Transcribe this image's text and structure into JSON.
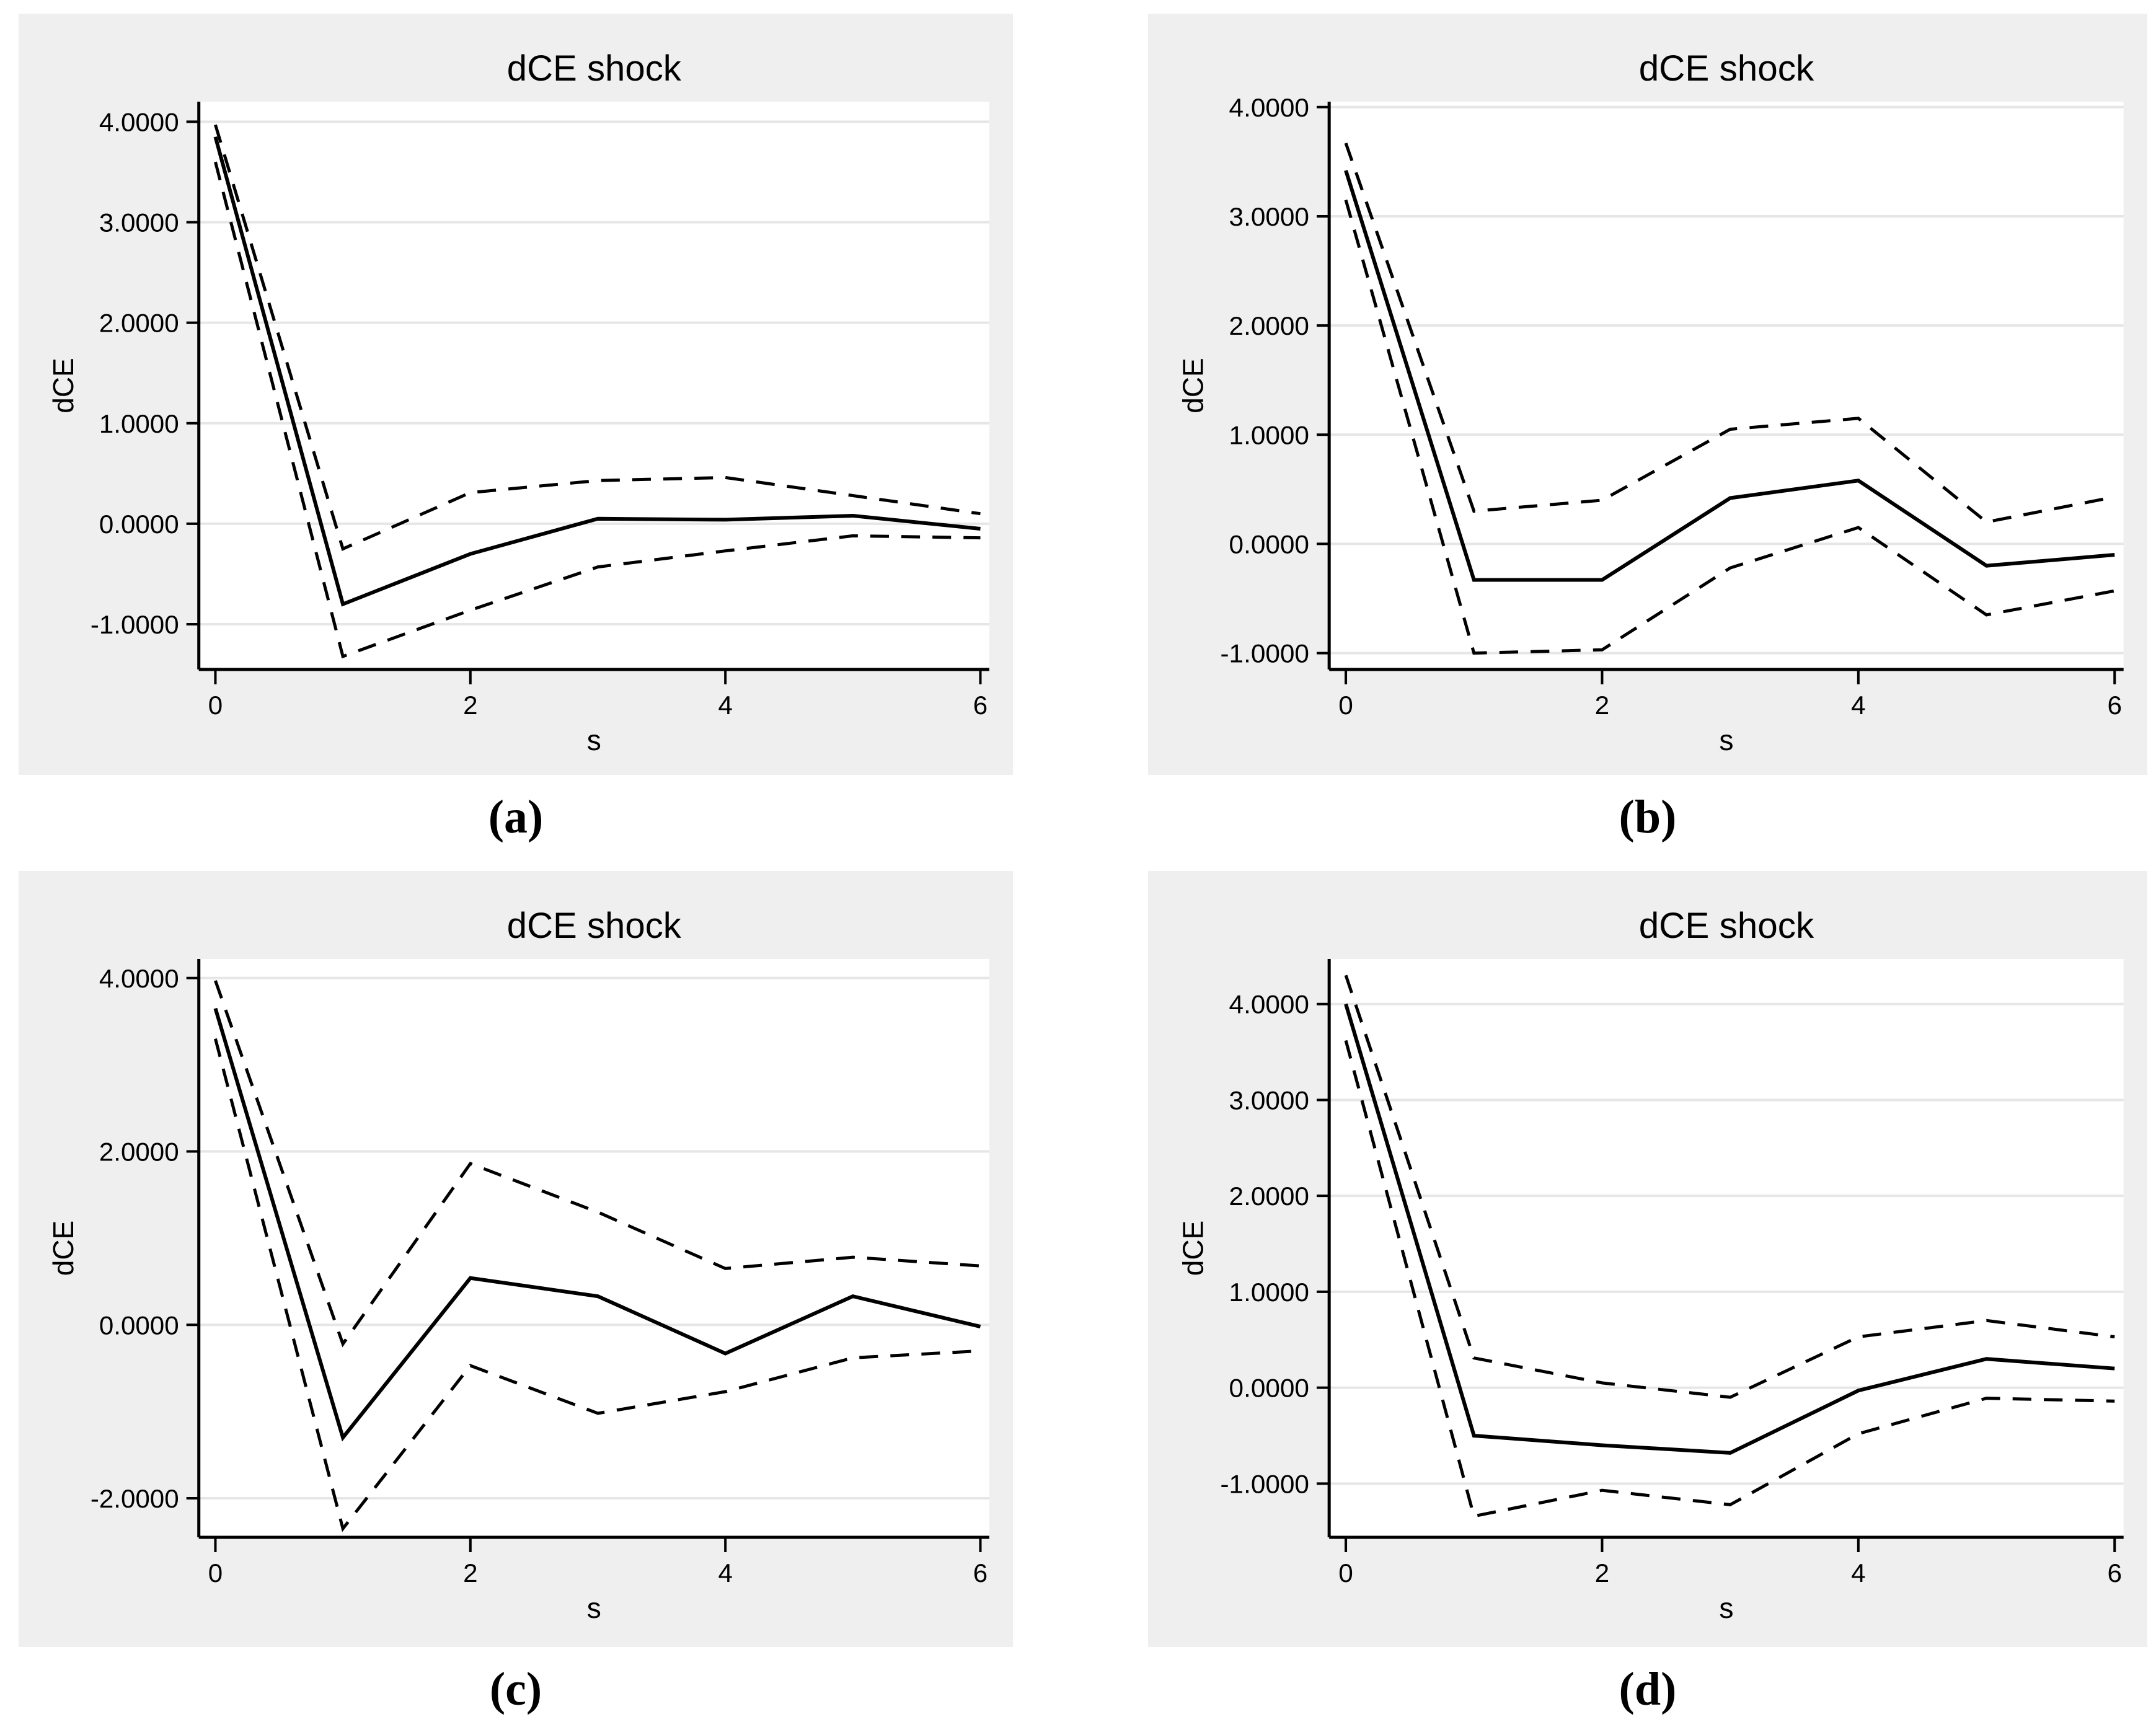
{
  "page": {
    "background": "#ffffff"
  },
  "styles": {
    "panel_background": "#efefef",
    "plot_background": "#ffffff",
    "grid_color": "#e6e6e6",
    "axis_color": "#000000",
    "line_color": "#000000"
  },
  "chart_data": [
    {
      "panel": "a",
      "caption": "(a)",
      "type": "line",
      "title": "dCE shock",
      "xlabel": "s",
      "ylabel": "dCE",
      "x": [
        0,
        1,
        2,
        3,
        4,
        5,
        6
      ],
      "series": [
        {
          "name": "impulse-response",
          "style": "solid",
          "values": [
            3.85,
            -0.8,
            -0.3,
            0.05,
            0.04,
            0.08,
            -0.05
          ]
        },
        {
          "name": "upper-confidence-band",
          "style": "dashed",
          "values": [
            3.97,
            -0.25,
            0.31,
            0.43,
            0.46,
            0.28,
            0.1
          ]
        },
        {
          "name": "lower-confidence-band",
          "style": "dashed",
          "values": [
            3.6,
            -1.32,
            -0.86,
            -0.43,
            -0.27,
            -0.12,
            -0.14
          ]
        }
      ],
      "xticks": [
        0,
        2,
        4,
        6
      ],
      "xtick_labels": [
        "0",
        "2",
        "4",
        "6"
      ],
      "yticks": [
        -1,
        0,
        1,
        2,
        3,
        4
      ],
      "ytick_labels": [
        "-1.0000",
        "0.0000",
        "1.0000",
        "2.0000",
        "3.0000",
        "4.0000"
      ],
      "xlim": [
        -0.13,
        6.07
      ],
      "ylim": [
        -1.45,
        4.2
      ],
      "grid": true,
      "legend": "none"
    },
    {
      "panel": "b",
      "caption": "(b)",
      "type": "line",
      "title": "dCE shock",
      "xlabel": "s",
      "ylabel": "dCE",
      "x": [
        0,
        1,
        2,
        3,
        4,
        5,
        6
      ],
      "series": [
        {
          "name": "impulse-response",
          "style": "solid",
          "values": [
            3.42,
            -0.33,
            -0.33,
            0.42,
            0.58,
            -0.2,
            -0.1
          ]
        },
        {
          "name": "upper-confidence-band",
          "style": "dashed",
          "values": [
            3.67,
            0.3,
            0.4,
            1.05,
            1.15,
            0.2,
            0.43
          ]
        },
        {
          "name": "lower-confidence-band",
          "style": "dashed",
          "values": [
            3.15,
            -1.0,
            -0.97,
            -0.22,
            0.15,
            -0.65,
            -0.43
          ]
        }
      ],
      "xticks": [
        0,
        2,
        4,
        6
      ],
      "xtick_labels": [
        "0",
        "2",
        "4",
        "6"
      ],
      "yticks": [
        -1,
        0,
        1,
        2,
        3,
        4
      ],
      "ytick_labels": [
        "-1.0000",
        "0.0000",
        "1.0000",
        "2.0000",
        "3.0000",
        "4.0000"
      ],
      "xlim": [
        -0.13,
        6.07
      ],
      "ylim": [
        -1.15,
        4.05
      ],
      "grid": true,
      "legend": "none"
    },
    {
      "panel": "c",
      "caption": "(c)",
      "type": "line",
      "title": "dCE shock",
      "xlabel": "s",
      "ylabel": "dCE",
      "x": [
        0,
        1,
        2,
        3,
        4,
        5,
        6
      ],
      "series": [
        {
          "name": "impulse-response",
          "style": "solid",
          "values": [
            3.65,
            -1.3,
            0.54,
            0.33,
            -0.33,
            0.33,
            -0.02
          ]
        },
        {
          "name": "upper-confidence-band",
          "style": "dashed",
          "values": [
            3.97,
            -0.22,
            1.86,
            1.3,
            0.65,
            0.78,
            0.68
          ]
        },
        {
          "name": "lower-confidence-band",
          "style": "dashed",
          "values": [
            3.3,
            -2.35,
            -0.47,
            -1.02,
            -0.77,
            -0.38,
            -0.3
          ]
        }
      ],
      "xticks": [
        0,
        2,
        4,
        6
      ],
      "xtick_labels": [
        "0",
        "2",
        "4",
        "6"
      ],
      "yticks": [
        -2,
        0,
        2,
        4
      ],
      "ytick_labels": [
        "-2.0000",
        "0.0000",
        "2.0000",
        "4.0000"
      ],
      "xlim": [
        -0.13,
        6.07
      ],
      "ylim": [
        -2.45,
        4.22
      ],
      "grid": true,
      "legend": "none"
    },
    {
      "panel": "d",
      "caption": "(d)",
      "type": "line",
      "title": "dCE shock",
      "xlabel": "s",
      "ylabel": "dCE",
      "x": [
        0,
        1,
        2,
        3,
        4,
        5,
        6
      ],
      "series": [
        {
          "name": "impulse-response",
          "style": "solid",
          "values": [
            4.0,
            -0.5,
            -0.6,
            -0.68,
            -0.03,
            0.3,
            0.2
          ]
        },
        {
          "name": "upper-confidence-band",
          "style": "dashed",
          "values": [
            4.3,
            0.31,
            0.05,
            -0.1,
            0.53,
            0.7,
            0.53
          ]
        },
        {
          "name": "lower-confidence-band",
          "style": "dashed",
          "values": [
            3.62,
            -1.34,
            -1.07,
            -1.22,
            -0.48,
            -0.11,
            -0.14
          ]
        }
      ],
      "xticks": [
        0,
        2,
        4,
        6
      ],
      "xtick_labels": [
        "0",
        "2",
        "4",
        "6"
      ],
      "yticks": [
        -1,
        0,
        1,
        2,
        3,
        4
      ],
      "ytick_labels": [
        "-1.0000",
        "0.0000",
        "1.0000",
        "2.0000",
        "3.0000",
        "4.0000"
      ],
      "xlim": [
        -0.13,
        6.07
      ],
      "ylim": [
        -1.56,
        4.47
      ],
      "grid": true,
      "legend": "none"
    }
  ]
}
